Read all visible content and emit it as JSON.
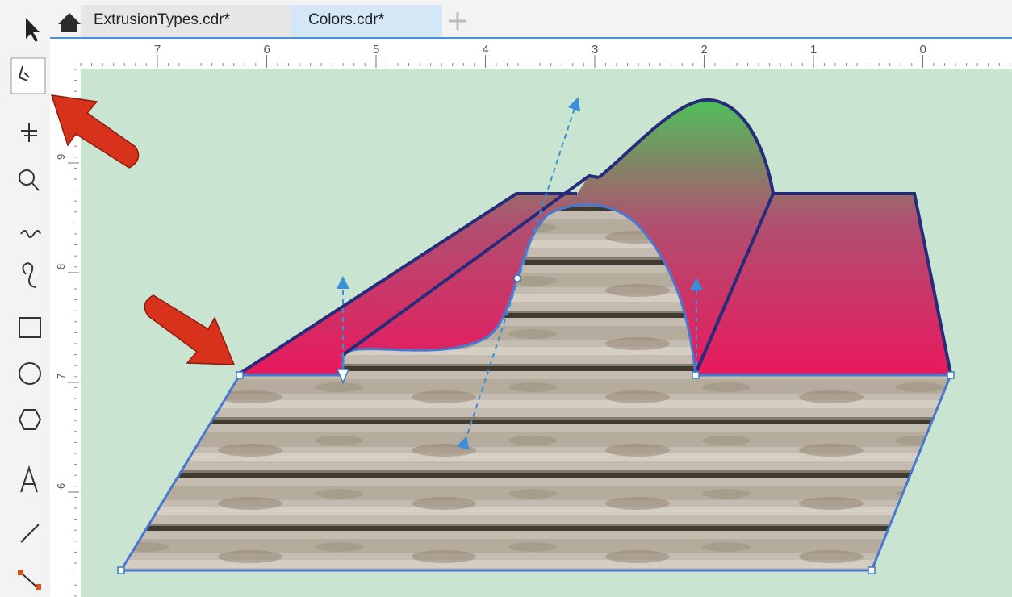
{
  "tabs": [
    {
      "label": "ExtrusionTypes.cdr*"
    },
    {
      "label": "Colors.cdr*"
    }
  ],
  "ruler": {
    "horizontal": [
      "7",
      "6",
      "5",
      "4",
      "3",
      "2",
      "1",
      "0"
    ],
    "vertical": [
      "9",
      "8",
      "7",
      "6"
    ]
  }
}
